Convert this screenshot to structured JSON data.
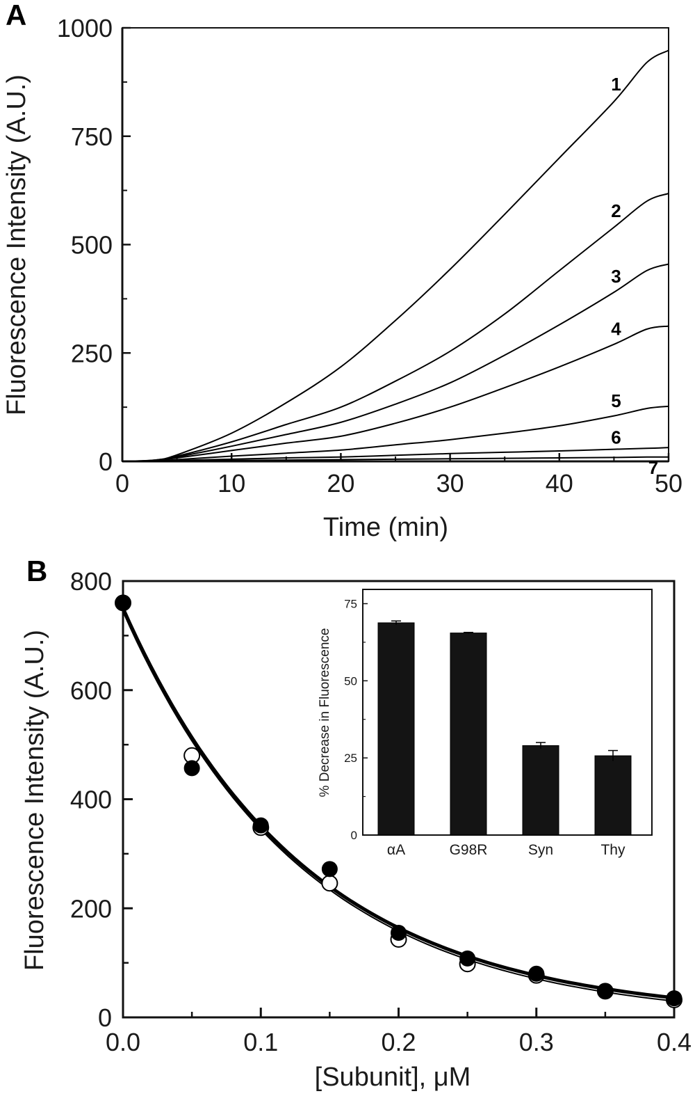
{
  "chart_data": [
    {
      "panel": "A",
      "type": "line",
      "title": "",
      "xlabel": "Time (min)",
      "ylabel": "Fluorescence Intensity (A.U.)",
      "xlim": [
        0,
        50
      ],
      "ylim": [
        0,
        1000
      ],
      "x_ticks": [
        0,
        10,
        20,
        30,
        40,
        50
      ],
      "x_tick_labels": [
        "0",
        "10",
        "20",
        "30",
        "40",
        "50"
      ],
      "y_ticks": [
        0,
        250,
        500,
        750,
        1000
      ],
      "y_tick_labels": [
        "0",
        "250",
        "500",
        "750",
        "1000"
      ],
      "grid": false,
      "x": [
        0,
        3,
        5,
        10,
        15,
        20,
        25,
        30,
        35,
        40,
        45,
        48,
        50
      ],
      "series": [
        {
          "name": "1",
          "values": [
            0,
            3,
            15,
            65,
            135,
            218,
            325,
            443,
            570,
            700,
            830,
            920,
            948
          ]
        },
        {
          "name": "2",
          "values": [
            0,
            3,
            12,
            45,
            85,
            125,
            185,
            254,
            340,
            440,
            540,
            600,
            618
          ]
        },
        {
          "name": "3",
          "values": [
            0,
            2,
            10,
            35,
            62,
            90,
            132,
            181,
            245,
            315,
            390,
            440,
            455
          ]
        },
        {
          "name": "4",
          "values": [
            0,
            2,
            8,
            25,
            42,
            58,
            88,
            125,
            170,
            218,
            270,
            305,
            312
          ]
        },
        {
          "name": "5",
          "values": [
            0,
            1,
            4,
            12,
            19,
            26,
            38,
            50,
            65,
            82,
            105,
            122,
            127
          ]
        },
        {
          "name": "6",
          "values": [
            0,
            1,
            2,
            5,
            8,
            10,
            14,
            18,
            21,
            24,
            28,
            30,
            32
          ]
        },
        {
          "name": "7",
          "values": [
            0,
            0,
            1,
            2,
            3,
            4,
            5,
            6,
            7,
            8,
            9,
            10,
            10
          ]
        }
      ]
    },
    {
      "panel": "B",
      "type": "scatter",
      "title": "",
      "xlabel": "[Subunit], μM",
      "ylabel": "Fluorescence Intensity (A.U.)",
      "xlim": [
        0,
        0.4
      ],
      "ylim": [
        0,
        800
      ],
      "x_ticks": [
        0.0,
        0.1,
        0.2,
        0.3,
        0.4
      ],
      "x_tick_labels": [
        "0.0",
        "0.1",
        "0.2",
        "0.3",
        "0.4"
      ],
      "y_ticks": [
        0,
        200,
        400,
        600,
        800
      ],
      "y_tick_labels": [
        "0",
        "200",
        "400",
        "600",
        "800"
      ],
      "grid": false,
      "x": [
        0.0,
        0.05,
        0.1,
        0.15,
        0.2,
        0.25,
        0.3,
        0.35,
        0.4
      ],
      "series": [
        {
          "name": "filled circles",
          "marker": "filled-circle",
          "values": [
            760,
            457,
            352,
            272,
            155,
            108,
            80,
            48,
            35
          ]
        },
        {
          "name": "open circles",
          "marker": "open-circle",
          "values": [
            760,
            480,
            348,
            246,
            143,
            98,
            77,
            48,
            32
          ]
        }
      ],
      "fit": {
        "type": "exponential-decay",
        "y0": 750,
        "k": 7.6,
        "offset": 0
      }
    },
    {
      "panel": "B-inset",
      "type": "bar",
      "title": "",
      "xlabel": "",
      "ylabel": "% Decrease in Fluorescence",
      "ylim": [
        0,
        80
      ],
      "y_ticks": [
        0,
        25,
        50,
        75
      ],
      "y_tick_labels": [
        "0",
        "25",
        "50",
        "75"
      ],
      "categories": [
        "αA",
        "G98R",
        "Syn",
        "Thy"
      ],
      "values": [
        68.8,
        65.5,
        29.0,
        25.7
      ],
      "errors": [
        0.6,
        0.2,
        1.0,
        1.7
      ],
      "bar_color": "#141414",
      "grid": false
    }
  ],
  "labels": {
    "panel_a": "A",
    "panel_b": "B"
  }
}
